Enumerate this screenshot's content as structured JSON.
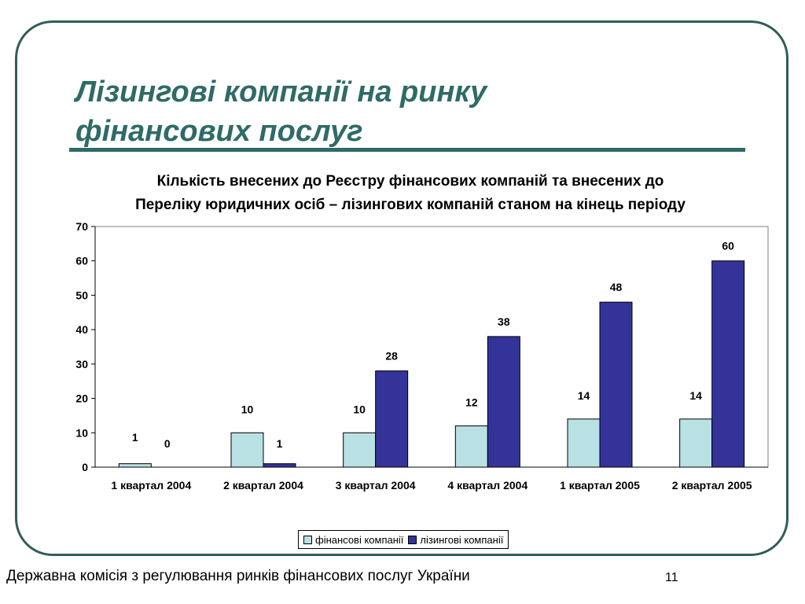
{
  "slide": {
    "title_line1": "Лізингові компанії на ринку",
    "title_line2": "фінансових послуг",
    "footer": "Державна комісія з регулювання ринків фінансових послуг України",
    "page_number": "11"
  },
  "chart_data": {
    "type": "bar",
    "title_line1": "Кількість внесених до Реєстру фінансових компаній та внесених до",
    "title_line2": "Переліку юридичних осіб – лізингових компаній станом на кінець періоду",
    "categories": [
      "1 квартал 2004",
      "2 квартал 2004",
      "3 квартал 2004",
      "4 квартал 2004",
      "1 квартал 2005",
      "2 квартал 2005"
    ],
    "series": [
      {
        "name": "фінансові компанії",
        "values": [
          1,
          10,
          10,
          12,
          14,
          14
        ],
        "color": "#b9e0e3"
      },
      {
        "name": "лізингові компанії",
        "values": [
          0,
          1,
          28,
          38,
          48,
          60
        ],
        "color": "#333399"
      }
    ],
    "ylim": [
      0,
      70
    ],
    "yticks": [
      0,
      10,
      20,
      30,
      40,
      50,
      60,
      70
    ],
    "xlabel": "",
    "ylabel": "",
    "grid": false,
    "legend": "bottom"
  }
}
